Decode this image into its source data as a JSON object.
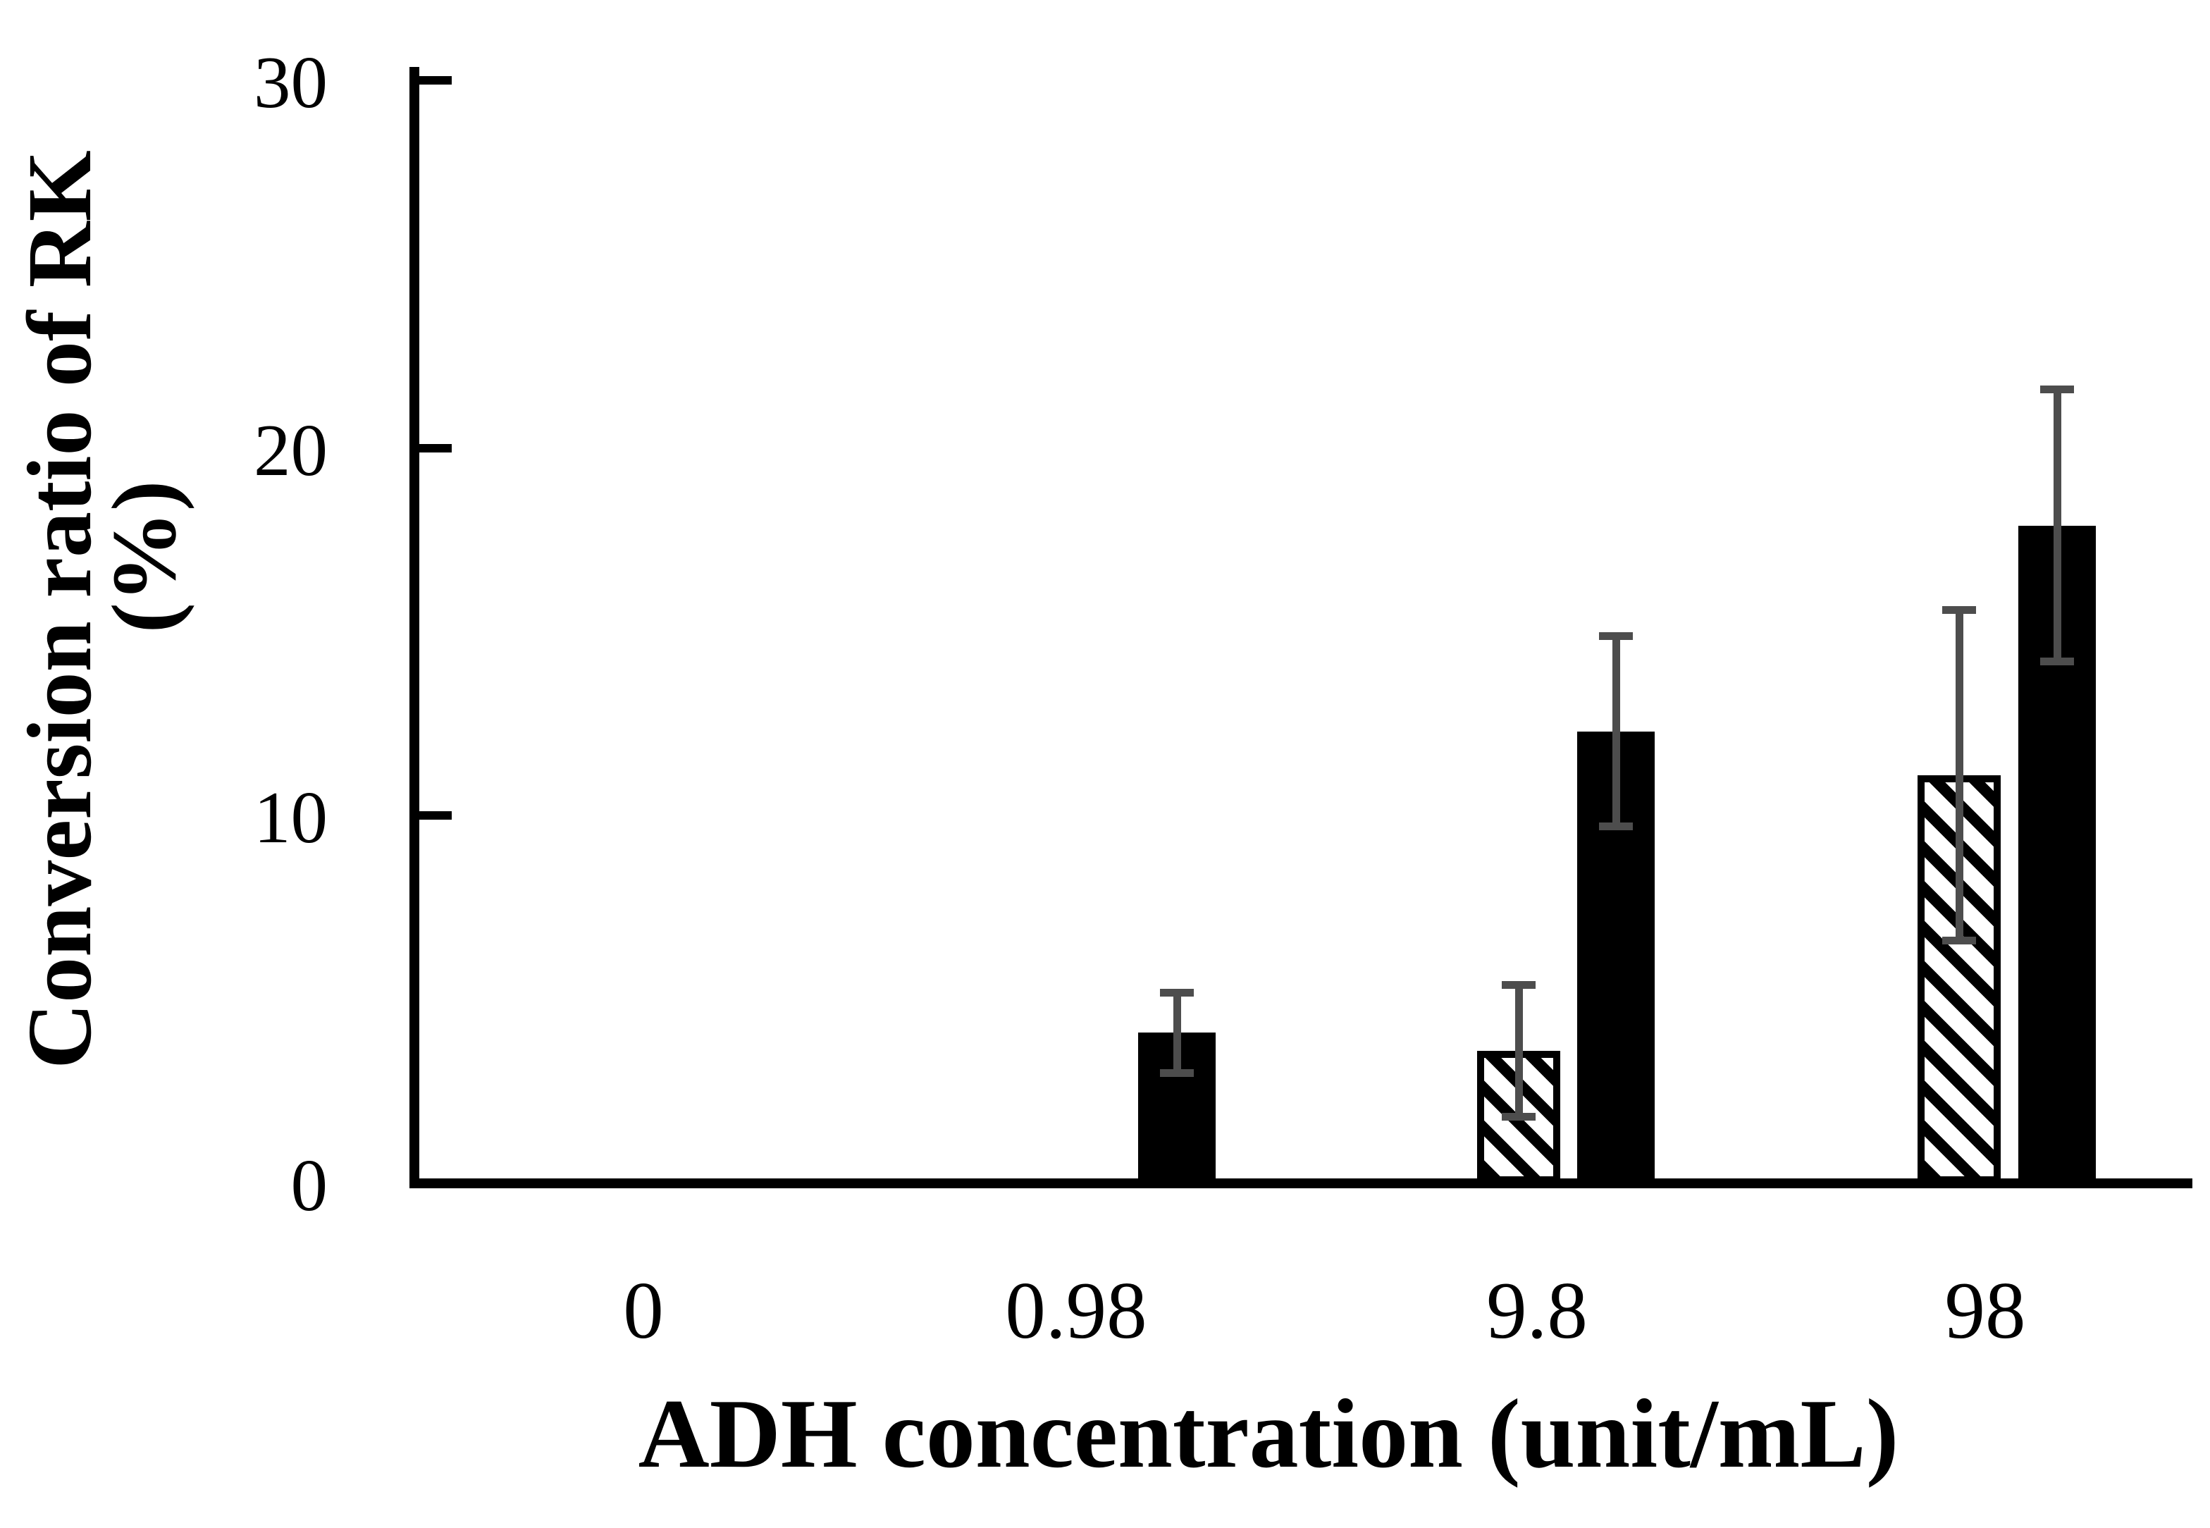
{
  "chart_data": {
    "type": "bar",
    "title": "",
    "categories": [
      "0",
      "0.98",
      "9.8",
      "98"
    ],
    "series": [
      {
        "name": "hatched",
        "pattern": "diagonal-hatch",
        "fill": "#ffffff",
        "stripe_color": "#000000",
        "values": [
          0,
          0,
          3.6,
          11.1
        ],
        "errors": [
          0,
          0,
          1.9,
          4.6
        ]
      },
      {
        "name": "solid",
        "pattern": "solid",
        "fill": "#000000",
        "values": [
          0,
          4.1,
          12.3,
          17.9
        ],
        "errors": [
          0,
          1.2,
          2.7,
          3.8
        ]
      }
    ],
    "xlabel": "ADH concentration (unit/mL)",
    "ylabel_line1": "Conversion ratio of RK",
    "ylabel_line2": "(%)",
    "ylim": [
      0,
      30
    ],
    "yticks": [
      0,
      10,
      20,
      30
    ],
    "ytick_labels": [
      "0",
      "10",
      "20",
      "30"
    ],
    "grid": false,
    "legend_position": "none",
    "axis_color": "#000000",
    "error_bar_color": "#4d4d4d",
    "background_color": "#ffffff"
  }
}
